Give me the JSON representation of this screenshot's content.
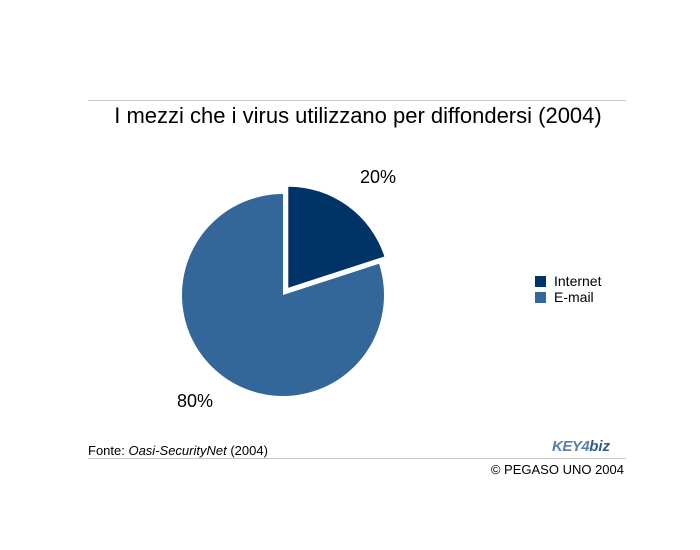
{
  "title": "I mezzi che i virus utilizzano per diffondersi (2004)",
  "chart_data": {
    "type": "pie",
    "title": "I mezzi che i virus utilizzano per diffondersi (2004)",
    "categories": [
      "Internet",
      "E-mail"
    ],
    "values": [
      20,
      80
    ],
    "labels": [
      "20%",
      "80%"
    ],
    "colors": [
      "#003366",
      "#336699"
    ],
    "exploded": [
      "Internet"
    ],
    "legend_position": "right"
  },
  "legend": [
    {
      "label": "Internet",
      "color": "#003366"
    },
    {
      "label": "E-mail",
      "color": "#336699"
    }
  ],
  "source": {
    "prefix": "Fonte: ",
    "name": "Oasi-SecurityNet",
    "suffix": " (2004)"
  },
  "copyright": "© PEGASO UNO 2004",
  "logo": {
    "part1": "KEY4",
    "part2": "biz"
  }
}
